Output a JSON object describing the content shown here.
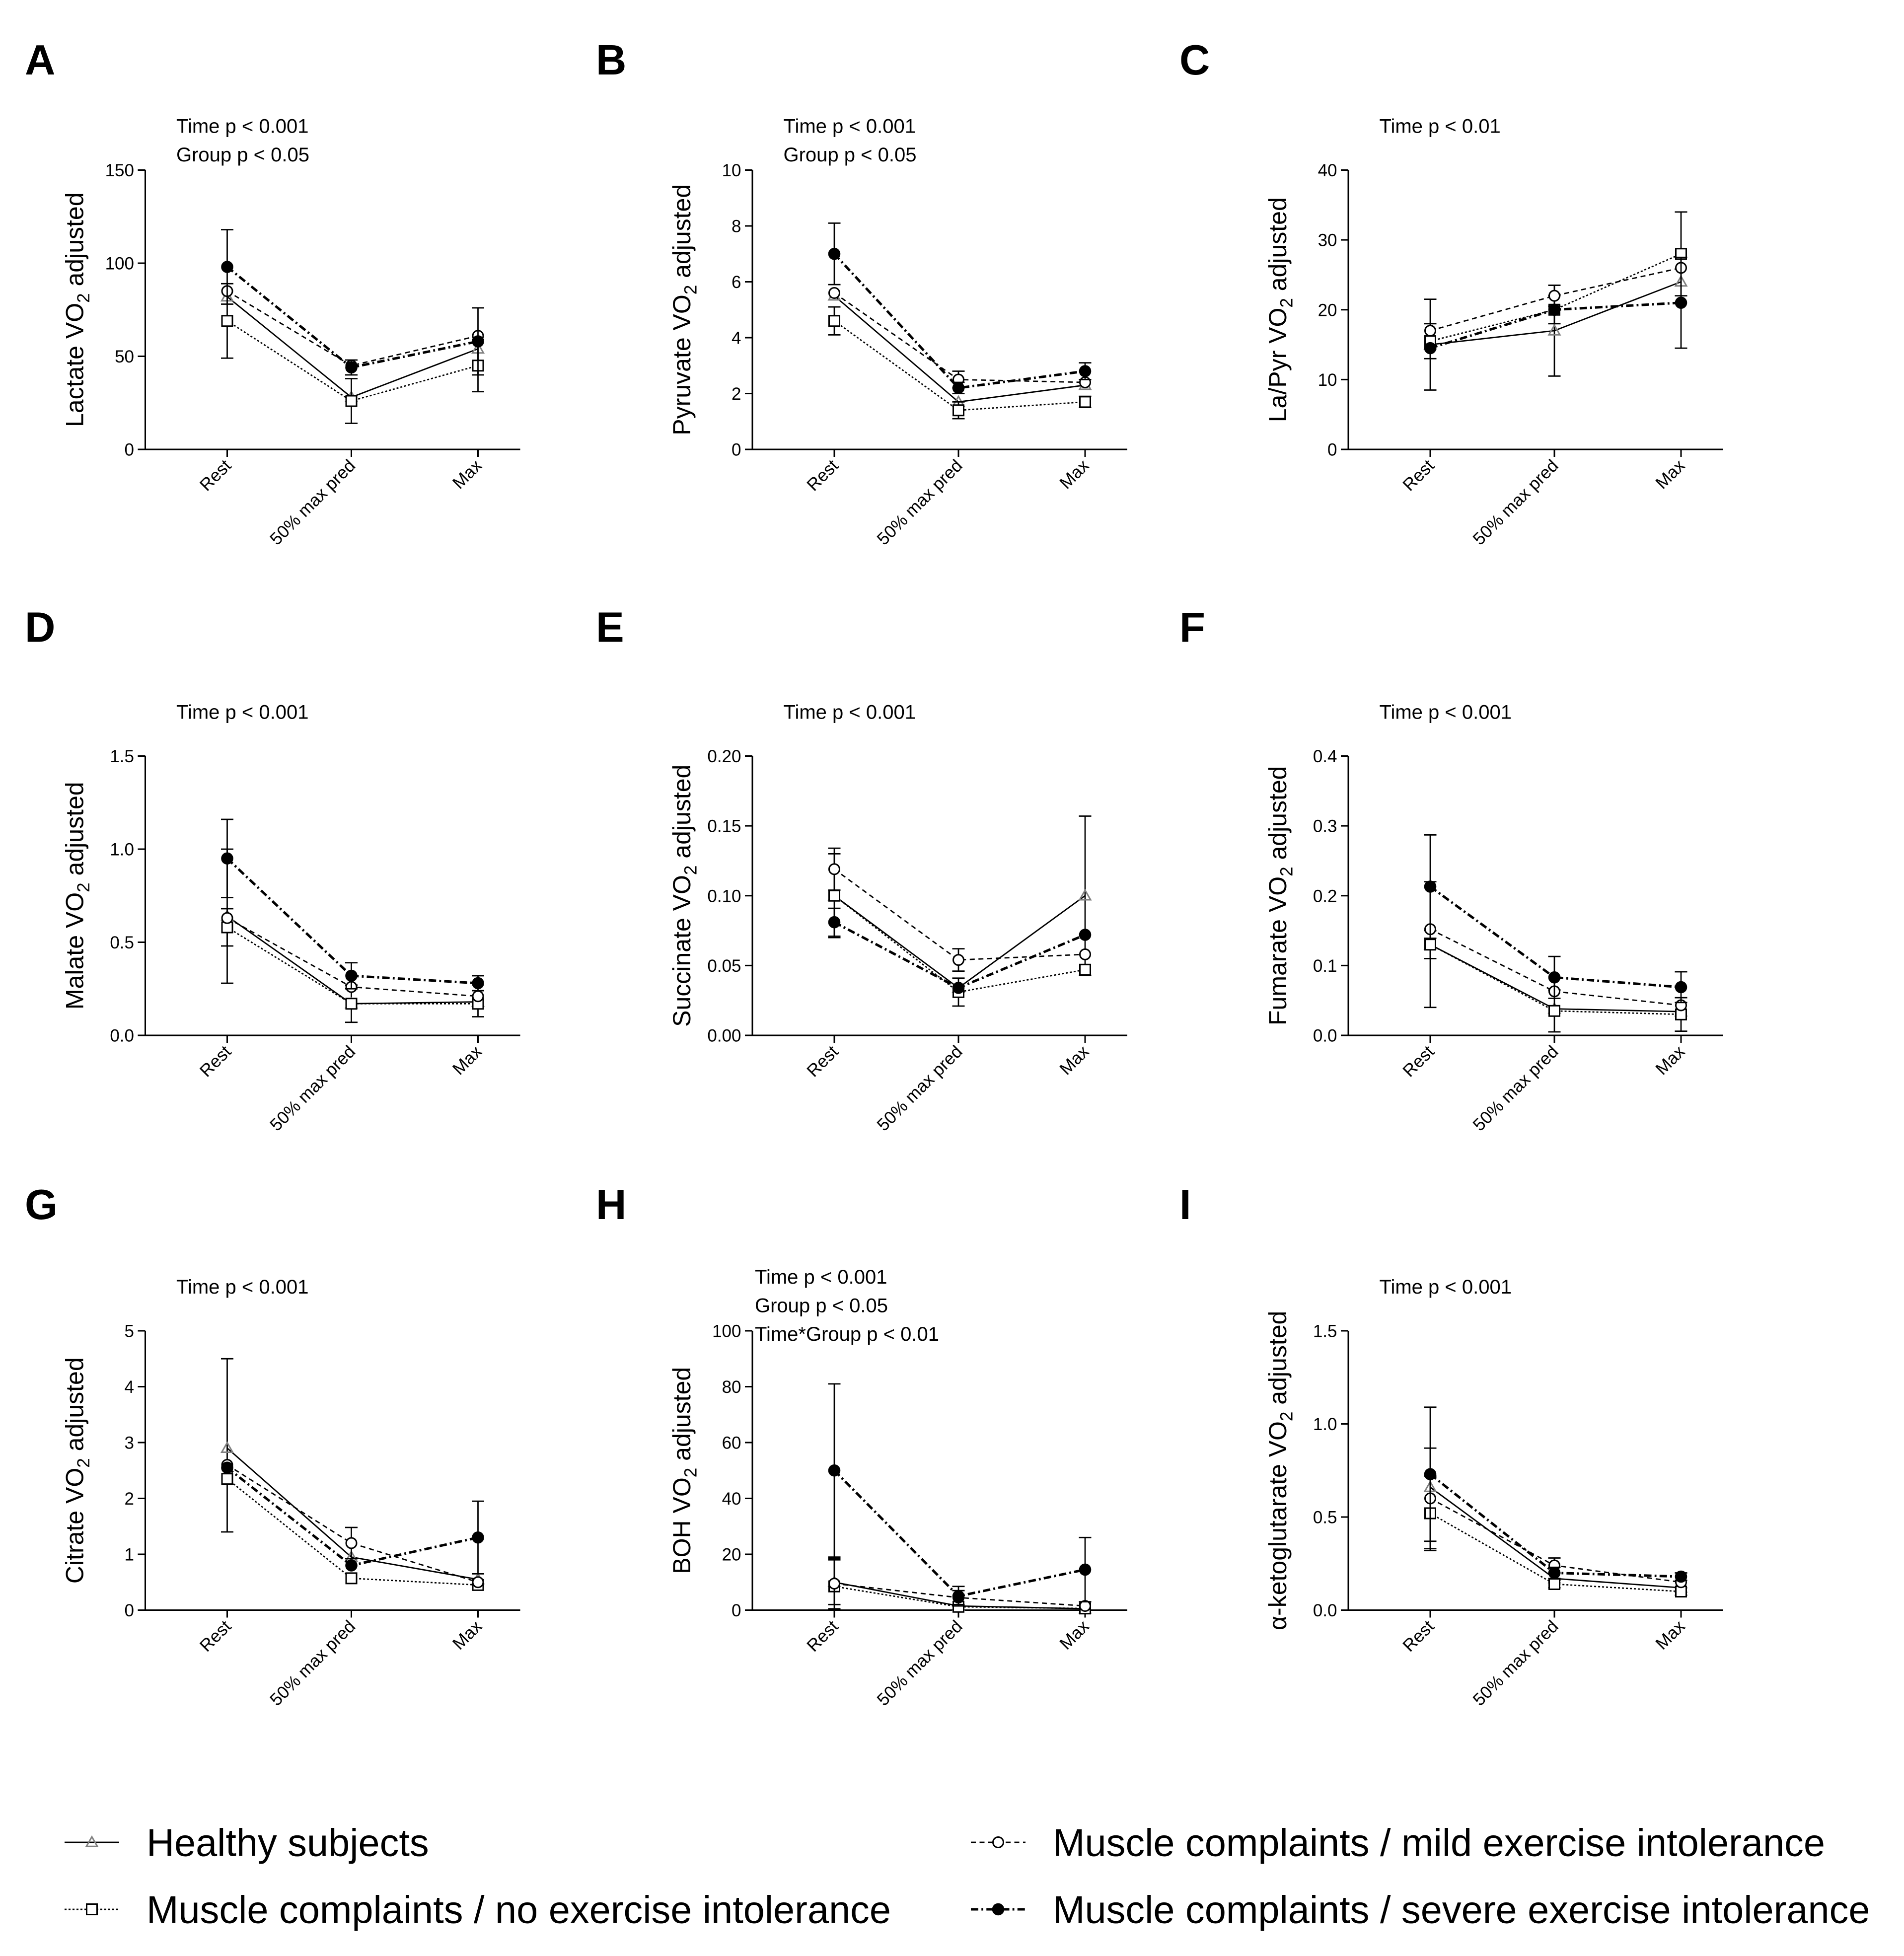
{
  "figure": {
    "x_categories": [
      "Rest",
      "50% max pred",
      "Max"
    ],
    "groups": [
      {
        "id": "healthy",
        "name": "Healthy subjects",
        "marker": "triangle",
        "dash": "solid",
        "color": "#000000",
        "marker_color": "#808080"
      },
      {
        "id": "mild",
        "name": "Muscle complaints / mild exercise intolerance",
        "marker": "circle-open",
        "dash": "dash",
        "color": "#000000",
        "marker_color": "#000000"
      },
      {
        "id": "none",
        "name": "Muscle complaints / no exercise intolerance",
        "marker": "square-open",
        "dash": "dot",
        "color": "#000000",
        "marker_color": "#000000"
      },
      {
        "id": "severe",
        "name": "Muscle complaints / severe exercise intolerance",
        "marker": "circle-filled",
        "dash": "dashdot",
        "color": "#000000",
        "marker_color": "#000000"
      }
    ]
  },
  "chart_data": [
    {
      "panel": "A",
      "type": "line",
      "ylabel": "Lactate VO",
      "ylabel_sub": "2",
      "ylabel_tail": " adjusted",
      "stats": [
        "Time p < 0.001",
        "Group p < 0.05"
      ],
      "ylim": [
        0,
        150
      ],
      "yticks": [
        0,
        50,
        100,
        150
      ],
      "ytick_labels": [
        "0",
        "50",
        "100",
        "150"
      ],
      "series": {
        "healthy": {
          "values": [
            82,
            28,
            54
          ],
          "err": [
            [
              0,
              0
            ],
            [
              0,
              0
            ],
            [
              0,
              0
            ]
          ]
        },
        "mild": {
          "values": [
            85,
            45,
            61
          ],
          "err": [
            [
              0,
              0
            ],
            [
              0,
              0
            ],
            [
              0,
              0
            ]
          ]
        },
        "none": {
          "values": [
            69,
            26,
            45
          ],
          "err": [
            [
              20,
              20
            ],
            [
              12,
              12
            ],
            [
              14,
              14
            ]
          ]
        },
        "severe": {
          "values": [
            98,
            44,
            58
          ],
          "err": [
            [
              20,
              20
            ],
            [
              4,
              4
            ],
            [
              18,
              18
            ]
          ]
        }
      }
    },
    {
      "panel": "B",
      "type": "line",
      "ylabel": "Pyruvate VO",
      "ylabel_sub": "2",
      "ylabel_tail": " adjusted",
      "stats": [
        "Time p < 0.001",
        "Group p < 0.05"
      ],
      "ylim": [
        0,
        10
      ],
      "yticks": [
        0,
        2,
        4,
        6,
        8,
        10
      ],
      "ytick_labels": [
        "0",
        "2",
        "4",
        "6",
        "8",
        "10"
      ],
      "series": {
        "healthy": {
          "values": [
            5.5,
            1.7,
            2.3
          ],
          "err": [
            [
              0,
              0
            ],
            [
              0,
              0
            ],
            [
              0,
              0
            ]
          ]
        },
        "mild": {
          "values": [
            5.6,
            2.5,
            2.4
          ],
          "err": [
            [
              0,
              0
            ],
            [
              0.3,
              0.3
            ],
            [
              0,
              0
            ]
          ]
        },
        "none": {
          "values": [
            4.6,
            1.4,
            1.7
          ],
          "err": [
            [
              0.5,
              0.5
            ],
            [
              0.3,
              0.3
            ],
            [
              0.2,
              0.2
            ]
          ]
        },
        "severe": {
          "values": [
            7.0,
            2.2,
            2.8
          ],
          "err": [
            [
              1.1,
              1.1
            ],
            [
              0.2,
              0.2
            ],
            [
              0.3,
              0.3
            ]
          ]
        }
      }
    },
    {
      "panel": "C",
      "type": "line",
      "ylabel": "La/Pyr VO",
      "ylabel_sub": "2",
      "ylabel_tail": " adjusted",
      "stats": [
        "Time p < 0.01"
      ],
      "ylim": [
        0,
        40
      ],
      "yticks": [
        0,
        10,
        20,
        30,
        40
      ],
      "ytick_labels": [
        "0",
        "10",
        "20",
        "30",
        "40"
      ],
      "series": {
        "healthy": {
          "values": [
            15,
            17,
            24
          ],
          "err": [
            [
              6.5,
              6.5
            ],
            [
              6.5,
              6.5
            ],
            [
              0,
              0
            ]
          ]
        },
        "mild": {
          "values": [
            17,
            22,
            26
          ],
          "err": [
            [
              0,
              0
            ],
            [
              1.5,
              1.5
            ],
            [
              0,
              0
            ]
          ]
        },
        "none": {
          "values": [
            15.5,
            20,
            28
          ],
          "err": [
            [
              2.5,
              2.5
            ],
            [
              2,
              2
            ],
            [
              6,
              6
            ]
          ]
        },
        "severe": {
          "values": [
            14.5,
            20,
            21
          ],
          "err": [
            [
              0,
              0
            ],
            [
              0,
              0
            ],
            [
              6.5,
              6.5
            ]
          ]
        }
      }
    },
    {
      "panel": "D",
      "type": "line",
      "ylabel": "Malate VO",
      "ylabel_sub": "2",
      "ylabel_tail": " adjusted",
      "stats": [
        "Time p < 0.001"
      ],
      "ylim": [
        0,
        1.5
      ],
      "yticks": [
        0,
        0.5,
        1.0,
        1.5
      ],
      "ytick_labels": [
        "0.0",
        "0.5",
        "1.0",
        "1.5"
      ],
      "series": {
        "healthy": {
          "values": [
            0.64,
            0.17,
            0.18
          ],
          "err": [
            [
              0.36,
              0.36
            ],
            [
              0.1,
              0.1
            ],
            [
              0,
              0
            ]
          ]
        },
        "mild": {
          "values": [
            0.63,
            0.26,
            0.21
          ],
          "err": [
            [
              0,
              0
            ],
            [
              0,
              0
            ],
            [
              0,
              0
            ]
          ]
        },
        "none": {
          "values": [
            0.58,
            0.17,
            0.17
          ],
          "err": [
            [
              0.1,
              0.1
            ],
            [
              0,
              0
            ],
            [
              0.07,
              0.07
            ]
          ]
        },
        "severe": {
          "values": [
            0.95,
            0.32,
            0.28
          ],
          "err": [
            [
              0.21,
              0.21
            ],
            [
              0.07,
              0.07
            ],
            [
              0.04,
              0.04
            ]
          ]
        }
      }
    },
    {
      "panel": "E",
      "type": "line",
      "ylabel": "Succinate VO",
      "ylabel_sub": "2",
      "ylabel_tail": " adjusted",
      "stats": [
        "Time p < 0.001"
      ],
      "ylim": [
        0,
        0.2
      ],
      "yticks": [
        0,
        0.05,
        0.1,
        0.15,
        0.2
      ],
      "ytick_labels": [
        "0.00",
        "0.05",
        "0.10",
        "0.15",
        "0.20"
      ],
      "series": {
        "healthy": {
          "values": [
            0.1,
            0.034,
            0.1
          ],
          "err": [
            [
              0,
              0
            ],
            [
              0,
              0
            ],
            [
              0.057,
              0.057
            ]
          ]
        },
        "mild": {
          "values": [
            0.119,
            0.054,
            0.058
          ],
          "err": [
            [
              0.015,
              0.015
            ],
            [
              0.008,
              0.008
            ],
            [
              0,
              0
            ]
          ]
        },
        "none": {
          "values": [
            0.1,
            0.031,
            0.047
          ],
          "err": [
            [
              0.03,
              0.03
            ],
            [
              0.01,
              0.01
            ],
            [
              0,
              0
            ]
          ]
        },
        "severe": {
          "values": [
            0.081,
            0.034,
            0.072
          ],
          "err": [
            [
              0.01,
              0.01
            ],
            [
              0,
              0
            ],
            [
              0,
              0
            ]
          ]
        }
      }
    },
    {
      "panel": "F",
      "type": "line",
      "ylabel": "Fumarate VO",
      "ylabel_sub": "2",
      "ylabel_tail": " adjusted",
      "stats": [
        "Time p < 0.001"
      ],
      "ylim": [
        0,
        0.4
      ],
      "yticks": [
        0,
        0.1,
        0.2,
        0.3,
        0.4
      ],
      "ytick_labels": [
        "0.0",
        "0.1",
        "0.2",
        "0.3",
        "0.4"
      ],
      "series": {
        "healthy": {
          "values": [
            0.13,
            0.038,
            0.034
          ],
          "err": [
            [
              0.09,
              0.09
            ],
            [
              0,
              0
            ],
            [
              0,
              0
            ]
          ]
        },
        "mild": {
          "values": [
            0.152,
            0.063,
            0.043
          ],
          "err": [
            [
              0,
              0
            ],
            [
              0,
              0
            ],
            [
              0,
              0
            ]
          ]
        },
        "none": {
          "values": [
            0.13,
            0.035,
            0.03
          ],
          "err": [
            [
              0.02,
              0.02
            ],
            [
              0.03,
              0.03
            ],
            [
              0.024,
              0.024
            ]
          ]
        },
        "severe": {
          "values": [
            0.213,
            0.083,
            0.069
          ],
          "err": [
            [
              0.074,
              0.074
            ],
            [
              0.03,
              0.03
            ],
            [
              0.022,
              0.022
            ]
          ]
        }
      }
    },
    {
      "panel": "G",
      "type": "line",
      "ylabel": "Citrate VO",
      "ylabel_sub": "2",
      "ylabel_tail": " adjusted",
      "stats": [
        "Time p < 0.001"
      ],
      "ylim": [
        0,
        5
      ],
      "yticks": [
        0,
        1,
        2,
        3,
        4,
        5
      ],
      "ytick_labels": [
        "0",
        "1",
        "2",
        "3",
        "4",
        "5"
      ],
      "series": {
        "healthy": {
          "values": [
            2.9,
            0.95,
            0.55
          ],
          "err": [
            [
              1.5,
              1.6
            ],
            [
              0,
              0
            ],
            [
              0,
              0
            ]
          ]
        },
        "mild": {
          "values": [
            2.6,
            1.2,
            0.5
          ],
          "err": [
            [
              0,
              0
            ],
            [
              0.28,
              0.28
            ],
            [
              0,
              0
            ]
          ]
        },
        "none": {
          "values": [
            2.35,
            0.57,
            0.45
          ],
          "err": [
            [
              0,
              0
            ],
            [
              0,
              0
            ],
            [
              0,
              0
            ]
          ]
        },
        "severe": {
          "values": [
            2.55,
            0.8,
            1.3
          ],
          "err": [
            [
              0,
              0
            ],
            [
              0,
              0
            ],
            [
              0.65,
              0.65
            ]
          ]
        }
      }
    },
    {
      "panel": "H",
      "type": "line",
      "ylabel": "BOH VO",
      "ylabel_sub": "2",
      "ylabel_tail": " adjusted",
      "stats": [
        "Time p < 0.001",
        "Group p < 0.05",
        "Time*Group p < 0.01"
      ],
      "ylim": [
        0,
        100
      ],
      "yticks": [
        0,
        20,
        40,
        60,
        80,
        100
      ],
      "ytick_labels": [
        "0",
        "20",
        "40",
        "60",
        "80",
        "100"
      ],
      "series": {
        "healthy": {
          "values": [
            10,
            1.5,
            0.5
          ],
          "err": [
            [
              8,
              8
            ],
            [
              0,
              0
            ],
            [
              0,
              0
            ]
          ]
        },
        "mild": {
          "values": [
            9.5,
            4.5,
            1.5
          ],
          "err": [
            [
              9,
              9
            ],
            [
              2.5,
              2.5
            ],
            [
              0,
              0
            ]
          ]
        },
        "none": {
          "values": [
            8.5,
            1.2,
            0.6
          ],
          "err": [
            [
              0,
              0
            ],
            [
              0,
              0
            ],
            [
              0,
              0
            ]
          ]
        },
        "severe": {
          "values": [
            50,
            5,
            14.5
          ],
          "err": [
            [
              31,
              31
            ],
            [
              3.5,
              3.5
            ],
            [
              11.5,
              11.5
            ]
          ]
        }
      }
    },
    {
      "panel": "I",
      "type": "line",
      "ylabel": "α-ketoglutarate VO",
      "ylabel_sub": "2",
      "ylabel_tail": " adjusted",
      "stats": [
        "Time p < 0.001"
      ],
      "ylim": [
        0,
        1.5
      ],
      "yticks": [
        0,
        0.5,
        1.0,
        1.5
      ],
      "ytick_labels": [
        "0.0",
        "0.5",
        "1.0",
        "1.5"
      ],
      "series": {
        "healthy": {
          "values": [
            0.66,
            0.17,
            0.12
          ],
          "err": [
            [
              0,
              0
            ],
            [
              0,
              0
            ],
            [
              0,
              0
            ]
          ]
        },
        "mild": {
          "values": [
            0.6,
            0.24,
            0.15
          ],
          "err": [
            [
              0.27,
              0.27
            ],
            [
              0.04,
              0.04
            ],
            [
              0,
              0
            ]
          ]
        },
        "none": {
          "values": [
            0.52,
            0.14,
            0.1
          ],
          "err": [
            [
              0.2,
              0.2
            ],
            [
              0.02,
              0.02
            ],
            [
              0.02,
              0.02
            ]
          ]
        },
        "severe": {
          "values": [
            0.73,
            0.2,
            0.18
          ],
          "err": [
            [
              0.36,
              0.36
            ],
            [
              0.03,
              0.03
            ],
            [
              0.02,
              0.02
            ]
          ]
        }
      }
    }
  ]
}
